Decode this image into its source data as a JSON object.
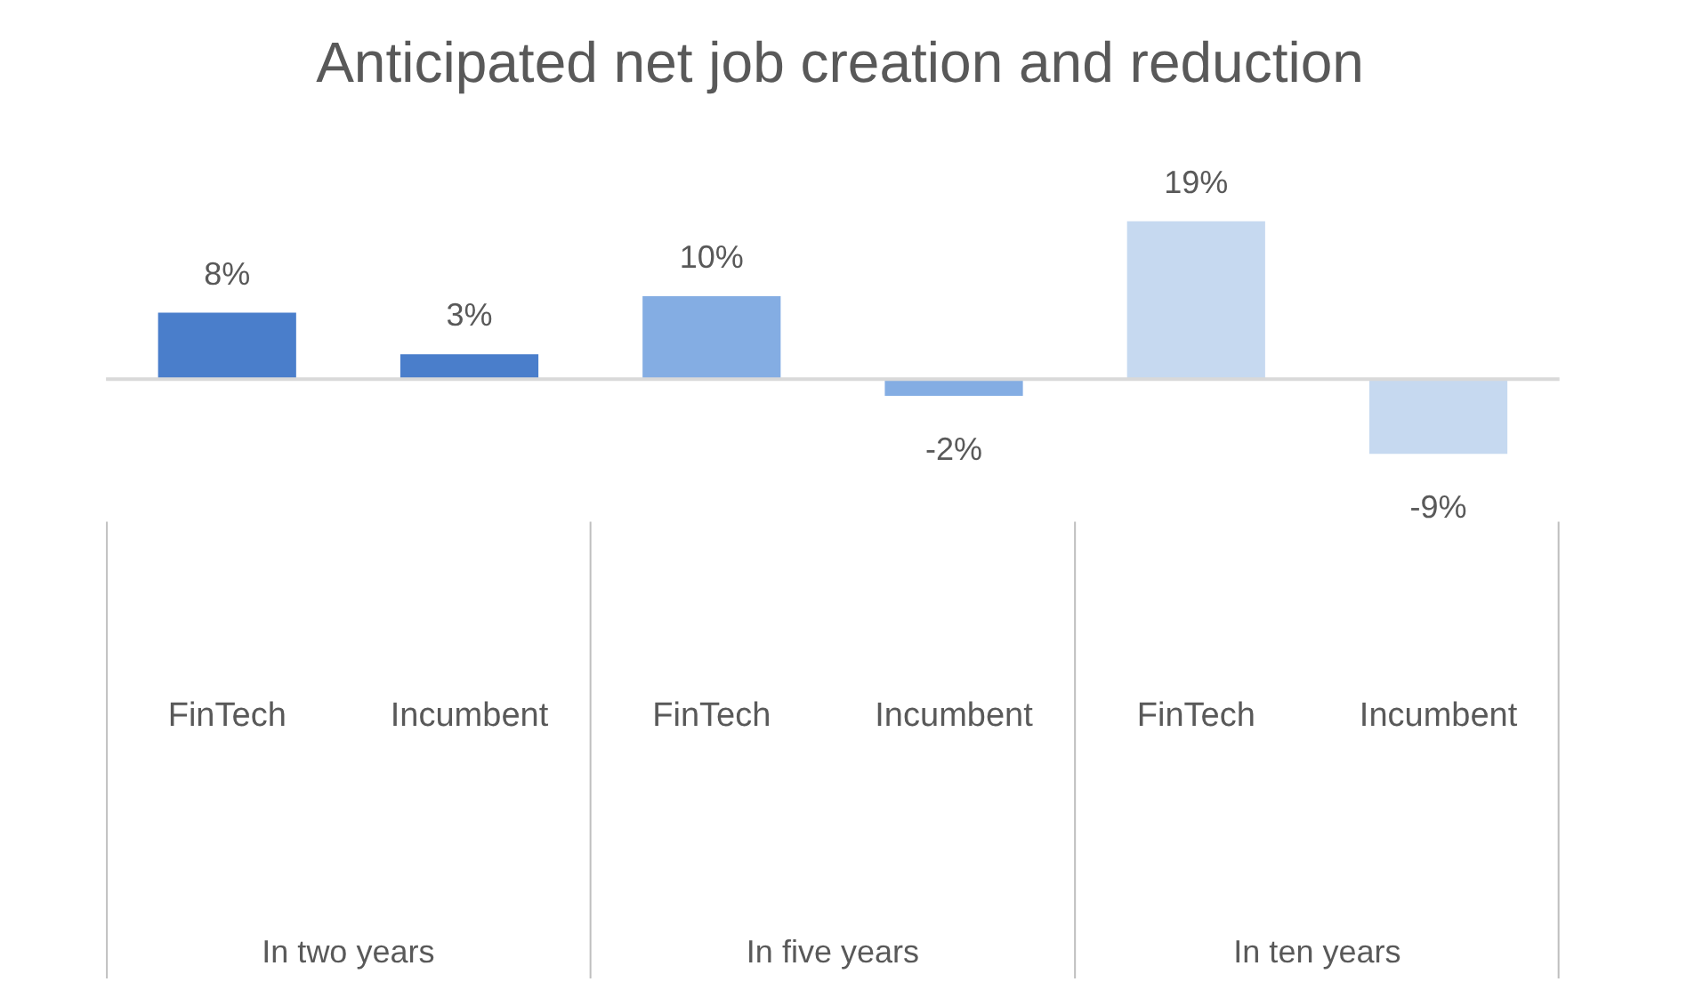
{
  "chart_data": {
    "type": "bar",
    "title": "Anticipated net job creation and reduction",
    "categories": [
      "FinTech",
      "Incumbent",
      "FinTech",
      "Incumbent",
      "FinTech",
      "Incumbent"
    ],
    "values": [
      8,
      3,
      10,
      -2,
      19,
      -9
    ],
    "colors": [
      "#4a7ecb",
      "#4a7ecb",
      "#84ade3",
      "#84ade3",
      "#c6d9f0",
      "#c6d9f0"
    ],
    "value_labels": [
      "8%",
      "3%",
      "10%",
      "-2%",
      "19%",
      "-9%"
    ],
    "annotations": [
      "In two years",
      "In five years",
      "In ten years"
    ],
    "tick_labels": "x",
    "grid": false,
    "legend": false
  }
}
